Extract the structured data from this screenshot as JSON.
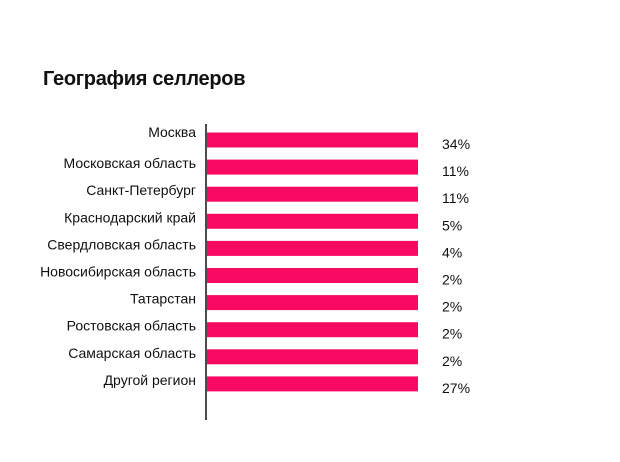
{
  "chart_data": {
    "type": "bar",
    "orientation": "horizontal",
    "title": "География селлеров",
    "categories": [
      "Москва",
      "Московская область",
      "Санкт-Петербург",
      "Краснодарский край",
      "Свердловская область",
      "Новосибирская область",
      "Татарстан",
      "Ростовская область",
      "Самарская область",
      "Другой регион"
    ],
    "values": [
      34,
      11,
      11,
      5,
      4,
      2,
      2,
      2,
      2,
      27
    ],
    "value_labels": [
      "34%",
      "11%",
      "11%",
      "5%",
      "4%",
      "2%",
      "2%",
      "2%",
      "2%",
      "27%"
    ],
    "bar_color": "#f80a63",
    "grid": false,
    "legend": "none"
  }
}
